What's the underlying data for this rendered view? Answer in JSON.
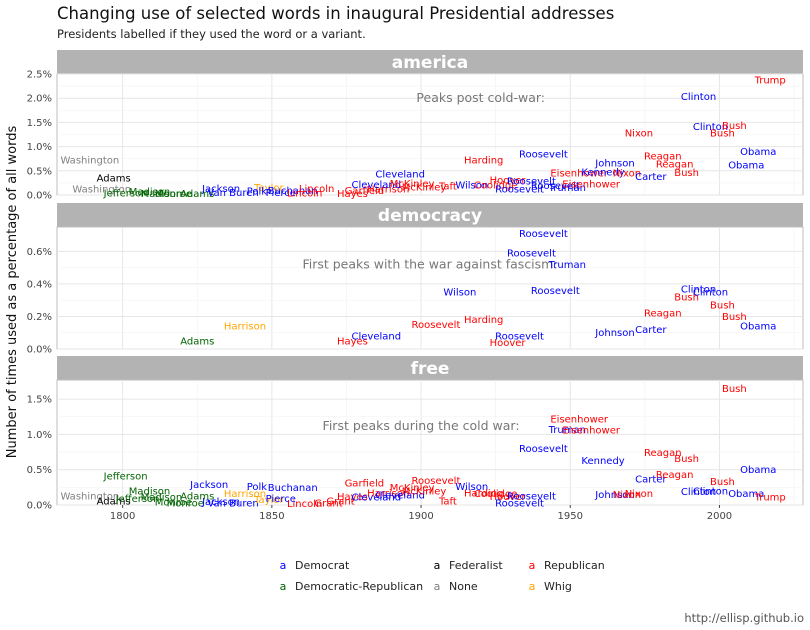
{
  "chart_data": {
    "type": "scatter",
    "title": "Changing use of selected words in inaugural Presidential addresses",
    "subtitle": "Presidents labelled if they used the word or a variant.",
    "ylabel": "Number of times used as a percentage of all words",
    "caption": "http://ellisp.github.io",
    "x_ticks": [
      1800,
      1850,
      1900,
      1950,
      2000
    ],
    "xlim": [
      1778,
      2028
    ],
    "parties": [
      {
        "name": "Democrat",
        "color": "#0000ff"
      },
      {
        "name": "Democratic-Republican",
        "color": "#006400"
      },
      {
        "name": "Federalist",
        "color": "#000000"
      },
      {
        "name": "None",
        "color": "#808080"
      },
      {
        "name": "Republican",
        "color": "#ff0000"
      },
      {
        "name": "Whig",
        "color": "#ffa500"
      }
    ],
    "legend_key_glyph": "a",
    "legend_position": "bottom",
    "facets": [
      {
        "strip": "america",
        "ylim": [
          0,
          0.025
        ],
        "y_ticks": [
          0,
          0.005,
          0.01,
          0.015,
          0.02,
          0.025
        ],
        "y_tick_labels": [
          "0.0%",
          "0.5%",
          "1.0%",
          "1.5%",
          "2.0%",
          "2.5%"
        ],
        "annotation": {
          "text": "Peaks post cold-war:",
          "x": 1920,
          "y": 0.02
        },
        "points": [
          {
            "label": "Washington",
            "party": "None",
            "x": 1789,
            "y": 0.0072
          },
          {
            "label": "Washington",
            "party": "None",
            "x": 1793,
            "y": 0.0012
          },
          {
            "label": "Adams",
            "party": "Federalist",
            "x": 1797,
            "y": 0.0035
          },
          {
            "label": "Jefferson",
            "party": "Democratic-Republican",
            "x": 1801,
            "y": 0.0004
          },
          {
            "label": "Madison",
            "party": "Democratic-Republican",
            "x": 1809,
            "y": 0.0007
          },
          {
            "label": "Madison",
            "party": "Democratic-Republican",
            "x": 1813,
            "y": 0.0003
          },
          {
            "label": "Monroe",
            "party": "Democratic-Republican",
            "x": 1817,
            "y": 0.0003
          },
          {
            "label": "Adams",
            "party": "Democratic-Republican",
            "x": 1825,
            "y": 0.0003
          },
          {
            "label": "Jackson",
            "party": "Democrat",
            "x": 1833,
            "y": 0.0013
          },
          {
            "label": "Van Buren",
            "party": "Democrat",
            "x": 1837,
            "y": 0.0005
          },
          {
            "label": "Taylor",
            "party": "Whig",
            "x": 1849,
            "y": 0.0015
          },
          {
            "label": "Polk",
            "party": "Democrat",
            "x": 1845,
            "y": 0.0008
          },
          {
            "label": "Pierce",
            "party": "Democrat",
            "x": 1853,
            "y": 0.0005
          },
          {
            "label": "Buchanan",
            "party": "Democrat",
            "x": 1857,
            "y": 0.0009
          },
          {
            "label": "Lincoln",
            "party": "Republican",
            "x": 1861,
            "y": 0.0004
          },
          {
            "label": "Lincoln",
            "party": "Republican",
            "x": 1865,
            "y": 0.0013
          },
          {
            "label": "Hayes",
            "party": "Republican",
            "x": 1877,
            "y": 0.0003
          },
          {
            "label": "Garfield",
            "party": "Republican",
            "x": 1881,
            "y": 0.0009
          },
          {
            "label": "Harrison",
            "party": "Republican",
            "x": 1889,
            "y": 0.0012
          },
          {
            "label": "Cleveland",
            "party": "Democrat",
            "x": 1885,
            "y": 0.0022
          },
          {
            "label": "Cleveland",
            "party": "Democrat",
            "x": 1893,
            "y": 0.0043
          },
          {
            "label": "McKinley",
            "party": "Republican",
            "x": 1897,
            "y": 0.0024
          },
          {
            "label": "McKinley",
            "party": "Republican",
            "x": 1901,
            "y": 0.0017
          },
          {
            "label": "Taft",
            "party": "Republican",
            "x": 1909,
            "y": 0.0019
          },
          {
            "label": "Wilson",
            "party": "Democrat",
            "x": 1917,
            "y": 0.0021
          },
          {
            "label": "Harding",
            "party": "Republican",
            "x": 1921,
            "y": 0.0072
          },
          {
            "label": "Coolidge",
            "party": "Republican",
            "x": 1925,
            "y": 0.0021
          },
          {
            "label": "Hoover",
            "party": "Republican",
            "x": 1929,
            "y": 0.0031
          },
          {
            "label": "Roosevelt",
            "party": "Democrat",
            "x": 1933,
            "y": 0.0012
          },
          {
            "label": "Roosevelt",
            "party": "Democrat",
            "x": 1937,
            "y": 0.0029
          },
          {
            "label": "Roosevelt",
            "party": "Democrat",
            "x": 1941,
            "y": 0.0085
          },
          {
            "label": "Roosevelt",
            "party": "Democrat",
            "x": 1945,
            "y": 0.002
          },
          {
            "label": "Truman",
            "party": "Democrat",
            "x": 1949,
            "y": 0.0015
          },
          {
            "label": "Eisenhower",
            "party": "Republican",
            "x": 1953,
            "y": 0.0045
          },
          {
            "label": "Eisenhower",
            "party": "Republican",
            "x": 1957,
            "y": 0.0023
          },
          {
            "label": "Kennedy",
            "party": "Democrat",
            "x": 1961,
            "y": 0.0048
          },
          {
            "label": "Johnson",
            "party": "Democrat",
            "x": 1965,
            "y": 0.0066
          },
          {
            "label": "Nixon",
            "party": "Republican",
            "x": 1969,
            "y": 0.0045
          },
          {
            "label": "Nixon",
            "party": "Republican",
            "x": 1973,
            "y": 0.0128
          },
          {
            "label": "Carter",
            "party": "Democrat",
            "x": 1977,
            "y": 0.0038
          },
          {
            "label": "Reagan",
            "party": "Republican",
            "x": 1981,
            "y": 0.0081
          },
          {
            "label": "Reagan",
            "party": "Republican",
            "x": 1985,
            "y": 0.0064
          },
          {
            "label": "Bush",
            "party": "Republican",
            "x": 1989,
            "y": 0.0046
          },
          {
            "label": "Clinton",
            "party": "Democrat",
            "x": 1993,
            "y": 0.0204
          },
          {
            "label": "Clinton",
            "party": "Democrat",
            "x": 1997,
            "y": 0.0142
          },
          {
            "label": "Bush",
            "party": "Republican",
            "x": 2001,
            "y": 0.0128
          },
          {
            "label": "Bush",
            "party": "Republican",
            "x": 2005,
            "y": 0.0144
          },
          {
            "label": "Obama",
            "party": "Democrat",
            "x": 2009,
            "y": 0.0062
          },
          {
            "label": "Obama",
            "party": "Democrat",
            "x": 2013,
            "y": 0.009
          },
          {
            "label": "Trump",
            "party": "Republican",
            "x": 2017,
            "y": 0.0238
          }
        ]
      },
      {
        "strip": "democracy",
        "ylim": [
          0,
          0.0075
        ],
        "y_ticks": [
          0,
          0.002,
          0.004,
          0.006
        ],
        "y_tick_labels": [
          "0.0%",
          "0.2%",
          "0.4%",
          "0.6%"
        ],
        "annotation": {
          "text": "First peaks with the war against fascism:",
          "x": 1903,
          "y": 0.0052
        },
        "points": [
          {
            "label": "Adams",
            "party": "Democratic-Republican",
            "x": 1825,
            "y": 0.0005
          },
          {
            "label": "Harrison",
            "party": "Whig",
            "x": 1841,
            "y": 0.0014
          },
          {
            "label": "Hayes",
            "party": "Republican",
            "x": 1877,
            "y": 0.0005
          },
          {
            "label": "Cleveland",
            "party": "Democrat",
            "x": 1885,
            "y": 0.0008
          },
          {
            "label": "Wilson",
            "party": "Democrat",
            "x": 1913,
            "y": 0.0035
          },
          {
            "label": "Roosevelt",
            "party": "Republican",
            "x": 1905,
            "y": 0.0015
          },
          {
            "label": "Harding",
            "party": "Republican",
            "x": 1921,
            "y": 0.0018
          },
          {
            "label": "Hoover",
            "party": "Republican",
            "x": 1929,
            "y": 0.0004
          },
          {
            "label": "Roosevelt",
            "party": "Democrat",
            "x": 1933,
            "y": 0.0008
          },
          {
            "label": "Roosevelt",
            "party": "Democrat",
            "x": 1941,
            "y": 0.0071
          },
          {
            "label": "Roosevelt",
            "party": "Democrat",
            "x": 1937,
            "y": 0.0059
          },
          {
            "label": "Roosevelt",
            "party": "Democrat",
            "x": 1945,
            "y": 0.0036
          },
          {
            "label": "Truman",
            "party": "Democrat",
            "x": 1949,
            "y": 0.0052
          },
          {
            "label": "Johnson",
            "party": "Democrat",
            "x": 1965,
            "y": 0.001
          },
          {
            "label": "Carter",
            "party": "Democrat",
            "x": 1977,
            "y": 0.0012
          },
          {
            "label": "Reagan",
            "party": "Republican",
            "x": 1981,
            "y": 0.0022
          },
          {
            "label": "Bush",
            "party": "Republican",
            "x": 1989,
            "y": 0.0032
          },
          {
            "label": "Clinton",
            "party": "Democrat",
            "x": 1993,
            "y": 0.0037
          },
          {
            "label": "Clinton",
            "party": "Democrat",
            "x": 1997,
            "y": 0.0035
          },
          {
            "label": "Bush",
            "party": "Republican",
            "x": 2001,
            "y": 0.0027
          },
          {
            "label": "Bush",
            "party": "Republican",
            "x": 2005,
            "y": 0.002
          },
          {
            "label": "Obama",
            "party": "Democrat",
            "x": 2013,
            "y": 0.0014
          }
        ]
      },
      {
        "strip": "free",
        "ylim": [
          0,
          0.0177
        ],
        "y_ticks": [
          0,
          0.005,
          0.01,
          0.015
        ],
        "y_tick_labels": [
          "0.0%",
          "0.5%",
          "1.0%",
          "1.5%"
        ],
        "annotation": {
          "text": "First peaks during the cold war:",
          "x": 1900,
          "y": 0.0112
        },
        "points": [
          {
            "label": "Washington",
            "party": "None",
            "x": 1789,
            "y": 0.0013
          },
          {
            "label": "Adams",
            "party": "Federalist",
            "x": 1797,
            "y": 0.0006
          },
          {
            "label": "Jefferson",
            "party": "Democratic-Republican",
            "x": 1801,
            "y": 0.0041
          },
          {
            "label": "Jefferson",
            "party": "Democratic-Republican",
            "x": 1805,
            "y": 0.0009
          },
          {
            "label": "Madison",
            "party": "Democratic-Republican",
            "x": 1809,
            "y": 0.002
          },
          {
            "label": "Madison",
            "party": "Democratic-Republican",
            "x": 1813,
            "y": 0.0011
          },
          {
            "label": "Monroe",
            "party": "Democratic-Republican",
            "x": 1817,
            "y": 0.0004
          },
          {
            "label": "Monroe",
            "party": "Democratic-Republican",
            "x": 1821,
            "y": 0.0003
          },
          {
            "label": "Adams",
            "party": "Democratic-Republican",
            "x": 1825,
            "y": 0.0013
          },
          {
            "label": "Jackson",
            "party": "Democrat",
            "x": 1829,
            "y": 0.0029
          },
          {
            "label": "Jackson",
            "party": "Democrat",
            "x": 1833,
            "y": 0.0005
          },
          {
            "label": "Van Buren",
            "party": "Democrat",
            "x": 1837,
            "y": 0.0003
          },
          {
            "label": "Harrison",
            "party": "Whig",
            "x": 1841,
            "y": 0.0016
          },
          {
            "label": "Polk",
            "party": "Democrat",
            "x": 1845,
            "y": 0.0026
          },
          {
            "label": "Taylor",
            "party": "Whig",
            "x": 1849,
            "y": 0.0008
          },
          {
            "label": "Pierce",
            "party": "Democrat",
            "x": 1853,
            "y": 0.0009
          },
          {
            "label": "Buchanan",
            "party": "Democrat",
            "x": 1857,
            "y": 0.0025
          },
          {
            "label": "Lincoln",
            "party": "Republican",
            "x": 1861,
            "y": 0.0002
          },
          {
            "label": "Grant",
            "party": "Republican",
            "x": 1869,
            "y": 0.0003
          },
          {
            "label": "Grant",
            "party": "Republican",
            "x": 1873,
            "y": 0.0006
          },
          {
            "label": "Hayes",
            "party": "Republican",
            "x": 1877,
            "y": 0.0012
          },
          {
            "label": "Garfield",
            "party": "Republican",
            "x": 1881,
            "y": 0.0031
          },
          {
            "label": "Cleveland",
            "party": "Democrat",
            "x": 1885,
            "y": 0.0011
          },
          {
            "label": "Harrison",
            "party": "Republican",
            "x": 1889,
            "y": 0.0017
          },
          {
            "label": "Cleveland",
            "party": "Democrat",
            "x": 1893,
            "y": 0.0014
          },
          {
            "label": "McKinley",
            "party": "Republican",
            "x": 1897,
            "y": 0.0025
          },
          {
            "label": "McKinley",
            "party": "Republican",
            "x": 1901,
            "y": 0.002
          },
          {
            "label": "Roosevelt",
            "party": "Republican",
            "x": 1905,
            "y": 0.0035
          },
          {
            "label": "Taft",
            "party": "Republican",
            "x": 1909,
            "y": 0.0006
          },
          {
            "label": "Wilson",
            "party": "Democrat",
            "x": 1917,
            "y": 0.0026
          },
          {
            "label": "Harding",
            "party": "Republican",
            "x": 1921,
            "y": 0.0017
          },
          {
            "label": "Coolidge",
            "party": "Republican",
            "x": 1925,
            "y": 0.0016
          },
          {
            "label": "Hoover",
            "party": "Republican",
            "x": 1929,
            "y": 0.0012
          },
          {
            "label": "Roosevelt",
            "party": "Democrat",
            "x": 1933,
            "y": 0.0003
          },
          {
            "label": "Roosevelt",
            "party": "Democrat",
            "x": 1937,
            "y": 0.0013
          },
          {
            "label": "Roosevelt",
            "party": "Democrat",
            "x": 1941,
            "y": 0.008
          },
          {
            "label": "Truman",
            "party": "Democrat",
            "x": 1949,
            "y": 0.0107
          },
          {
            "label": "Eisenhower",
            "party": "Republican",
            "x": 1953,
            "y": 0.0122
          },
          {
            "label": "Eisenhower",
            "party": "Republican",
            "x": 1957,
            "y": 0.0106
          },
          {
            "label": "Kennedy",
            "party": "Democrat",
            "x": 1961,
            "y": 0.0063
          },
          {
            "label": "Johnson",
            "party": "Democrat",
            "x": 1965,
            "y": 0.0015
          },
          {
            "label": "Nixon",
            "party": "Republican",
            "x": 1969,
            "y": 0.0015
          },
          {
            "label": "Nixon",
            "party": "Republican",
            "x": 1973,
            "y": 0.0016
          },
          {
            "label": "Carter",
            "party": "Democrat",
            "x": 1977,
            "y": 0.0037
          },
          {
            "label": "Reagan",
            "party": "Republican",
            "x": 1981,
            "y": 0.0074
          },
          {
            "label": "Reagan",
            "party": "Republican",
            "x": 1985,
            "y": 0.0043
          },
          {
            "label": "Bush",
            "party": "Republican",
            "x": 1989,
            "y": 0.0066
          },
          {
            "label": "Clinton",
            "party": "Democrat",
            "x": 1993,
            "y": 0.0019
          },
          {
            "label": "Clinton",
            "party": "Democrat",
            "x": 1997,
            "y": 0.002
          },
          {
            "label": "Bush",
            "party": "Republican",
            "x": 2001,
            "y": 0.0033
          },
          {
            "label": "Bush",
            "party": "Republican",
            "x": 2005,
            "y": 0.0165
          },
          {
            "label": "Obama",
            "party": "Democrat",
            "x": 2009,
            "y": 0.0016
          },
          {
            "label": "Obama",
            "party": "Democrat",
            "x": 2013,
            "y": 0.005
          },
          {
            "label": "Trump",
            "party": "Republican",
            "x": 2017,
            "y": 0.0011
          }
        ]
      }
    ]
  }
}
